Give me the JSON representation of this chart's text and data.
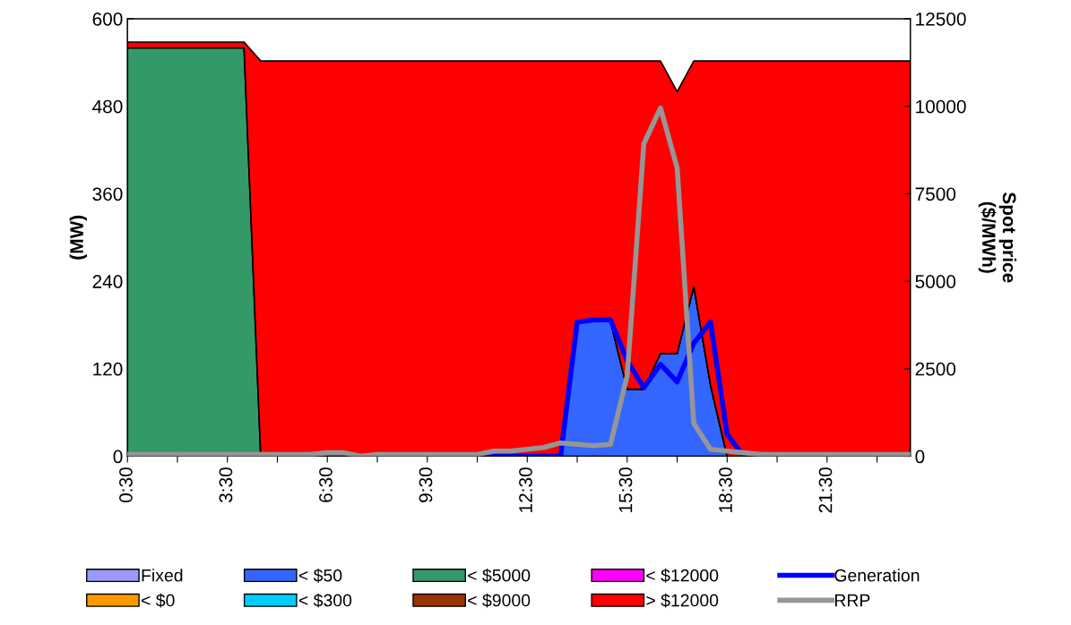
{
  "chart_data": {
    "type": "area",
    "stacked": true,
    "ylabel": "(MW)",
    "y2label": "Spot price\n($/MWh)",
    "categories": [
      "0:30",
      null,
      null,
      null,
      null,
      null,
      "3:30",
      null,
      null,
      null,
      null,
      null,
      "6:30",
      null,
      null,
      null,
      null,
      null,
      "9:30",
      null,
      null,
      null,
      null,
      null,
      "12:30",
      null,
      null,
      null,
      null,
      null,
      "15:30",
      null,
      null,
      null,
      null,
      null,
      "18:30",
      null,
      null,
      null,
      null,
      null,
      "21:30",
      null,
      null,
      null,
      null,
      null
    ],
    "ylim": [
      0,
      600
    ],
    "yticks": [
      0,
      120,
      240,
      360,
      480,
      600
    ],
    "y2lim": [
      0,
      12500
    ],
    "y2ticks": [
      0,
      2500,
      5000,
      7500,
      10000,
      12500
    ],
    "grid": false,
    "legend": "bottom",
    "series": [
      {
        "name": "Fixed",
        "color": "#9999ff",
        "values": [
          null,
          null,
          null,
          null,
          null,
          null,
          null,
          null,
          null,
          null,
          null,
          null,
          null,
          null,
          null,
          null,
          null,
          null,
          null,
          null,
          null,
          null,
          null,
          null,
          null,
          null,
          null,
          null,
          null,
          null,
          null,
          null,
          null,
          null,
          null,
          null,
          null,
          null,
          null,
          null,
          null,
          null,
          null,
          null,
          null,
          null,
          null,
          null
        ]
      },
      {
        "name": "< $0",
        "color": "#ff9900",
        "values": [
          null,
          null,
          null,
          null,
          null,
          null,
          null,
          null,
          null,
          null,
          null,
          null,
          null,
          null,
          null,
          null,
          null,
          null,
          null,
          null,
          null,
          null,
          null,
          null,
          null,
          null,
          null,
          null,
          null,
          null,
          null,
          null,
          null,
          null,
          null,
          null,
          null,
          null,
          null,
          null,
          null,
          null,
          null,
          null,
          null,
          null,
          null,
          null
        ]
      },
      {
        "name": "< $50",
        "color": "#3366ff",
        "values": [
          0,
          0,
          0,
          0,
          0,
          0,
          0,
          0,
          0,
          0,
          0,
          0,
          0,
          0,
          0,
          0,
          0,
          0,
          0,
          0,
          0,
          0,
          0,
          0,
          0,
          0,
          0,
          183,
          185,
          185,
          92,
          92,
          141,
          141,
          233,
          98,
          0,
          0,
          0,
          0,
          0,
          0,
          0,
          0,
          0,
          0,
          0,
          0
        ]
      },
      {
        "name": "< $300",
        "color": "#00ccff",
        "values": [
          null,
          null,
          null,
          null,
          null,
          null,
          null,
          null,
          null,
          null,
          null,
          null,
          null,
          null,
          null,
          null,
          null,
          null,
          null,
          null,
          null,
          null,
          null,
          null,
          null,
          null,
          null,
          null,
          null,
          null,
          null,
          null,
          null,
          null,
          null,
          null,
          null,
          null,
          null,
          null,
          null,
          null,
          null,
          null,
          null,
          null,
          null,
          null
        ]
      },
      {
        "name": "< $5000",
        "color": "#339966",
        "values": [
          560,
          560,
          560,
          560,
          560,
          560,
          560,
          560,
          0,
          0,
          0,
          0,
          0,
          0,
          0,
          0,
          0,
          0,
          0,
          0,
          0,
          0,
          0,
          0,
          0,
          0,
          0,
          0,
          0,
          0,
          0,
          0,
          0,
          0,
          0,
          0,
          0,
          0,
          0,
          0,
          0,
          0,
          0,
          0,
          0,
          0,
          0,
          0
        ]
      },
      {
        "name": "< $9000",
        "color": "#993300",
        "values": [
          null,
          null,
          null,
          null,
          null,
          null,
          null,
          null,
          null,
          null,
          null,
          null,
          null,
          null,
          null,
          null,
          null,
          null,
          null,
          null,
          null,
          null,
          null,
          null,
          null,
          null,
          null,
          null,
          null,
          null,
          null,
          null,
          null,
          null,
          null,
          null,
          null,
          null,
          null,
          null,
          null,
          null,
          null,
          null,
          null,
          null,
          null,
          null
        ]
      },
      {
        "name": "< $12000",
        "color": "#ff00ff",
        "values": [
          null,
          null,
          null,
          null,
          null,
          null,
          null,
          null,
          null,
          null,
          null,
          null,
          null,
          null,
          null,
          null,
          null,
          null,
          null,
          null,
          null,
          null,
          null,
          null,
          null,
          null,
          null,
          null,
          null,
          null,
          null,
          null,
          null,
          null,
          null,
          null,
          null,
          null,
          null,
          null,
          null,
          null,
          null,
          null,
          null,
          null,
          null,
          null
        ]
      },
      {
        "name": "> $12000",
        "color": "#ff0000",
        "values": [
          8,
          8,
          8,
          8,
          8,
          8,
          8,
          8,
          542,
          542,
          542,
          542,
          542,
          542,
          542,
          542,
          542,
          542,
          542,
          542,
          542,
          542,
          542,
          542,
          542,
          542,
          542,
          359,
          357,
          357,
          450,
          450,
          401,
          359,
          309,
          444,
          542,
          542,
          542,
          542,
          542,
          542,
          542,
          542,
          542,
          542,
          542,
          542
        ]
      },
      {
        "name": "Generation",
        "type": "line",
        "color": "#0000ff",
        "values": [
          null,
          null,
          null,
          null,
          null,
          null,
          null,
          null,
          null,
          null,
          null,
          null,
          null,
          null,
          null,
          null,
          null,
          null,
          null,
          null,
          null,
          0,
          0,
          0,
          0,
          0,
          0,
          184,
          187,
          187,
          131,
          94,
          126,
          102,
          155,
          184,
          30,
          0,
          null,
          null,
          null,
          null,
          null,
          null,
          null,
          null,
          null,
          null
        ]
      },
      {
        "name": "RRP",
        "type": "line",
        "axis": "y2",
        "color": "#969696",
        "values": [
          50,
          50,
          50,
          50,
          50,
          50,
          50,
          50,
          50,
          50,
          50,
          50,
          100,
          100,
          0,
          50,
          50,
          50,
          50,
          50,
          50,
          50,
          150,
          150,
          200,
          250,
          380,
          340,
          300,
          340,
          2300,
          8930,
          9950,
          8240,
          940,
          200,
          150,
          100,
          50,
          50,
          50,
          50,
          50,
          50,
          50,
          50,
          50,
          50
        ]
      }
    ]
  }
}
